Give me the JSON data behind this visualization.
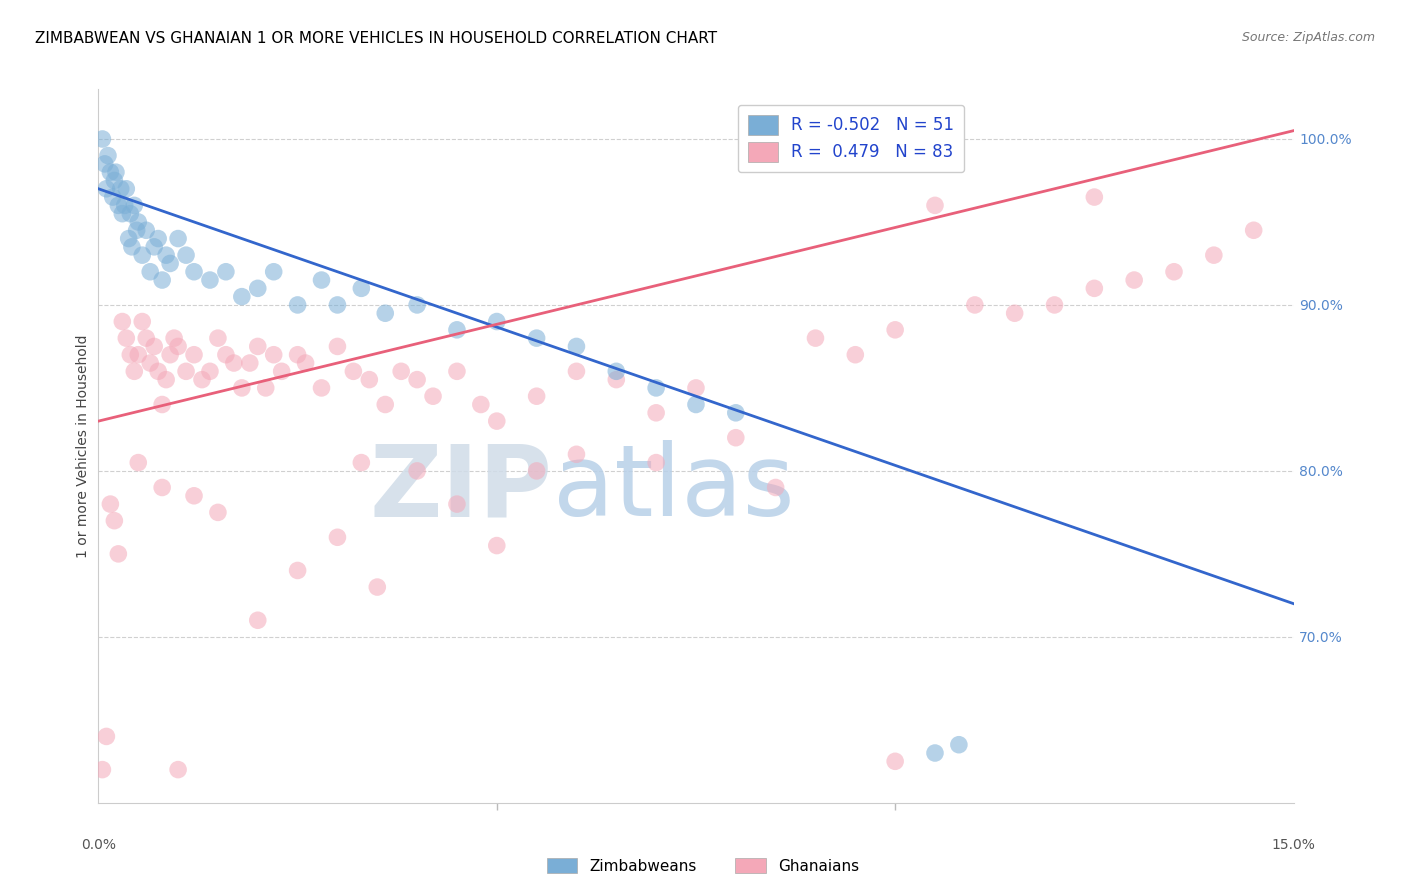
{
  "title": "ZIMBABWEAN VS GHANAIAN 1 OR MORE VEHICLES IN HOUSEHOLD CORRELATION CHART",
  "source": "Source: ZipAtlas.com",
  "ylabel": "1 or more Vehicles in Household",
  "xmin": 0.0,
  "xmax": 15.0,
  "ymin": 60.0,
  "ymax": 103.0,
  "zim_color": "#7aaed6",
  "gha_color": "#f4a8b8",
  "zim_line_color": "#3366cc",
  "gha_line_color": "#e8607a",
  "zim_r": -0.502,
  "zim_n": 51,
  "gha_r": 0.479,
  "gha_n": 83,
  "watermark_zip": "ZIP",
  "watermark_atlas": "atlas",
  "watermark_color": "#ccdff0",
  "legend_label_zim": "Zimbabweans",
  "legend_label_gha": "Ghanaians",
  "ytick_vals": [
    70.0,
    80.0,
    90.0,
    100.0
  ],
  "ytick_labels": [
    "70.0%",
    "80.0%",
    "90.0%",
    "100.0%"
  ],
  "right_y_color": "#5588cc",
  "grid_color": "#d0d0d0",
  "bg_color": "#ffffff",
  "title_fontsize": 11,
  "source_fontsize": 9,
  "marker_size": 160,
  "marker_alpha": 0.55,
  "line_width": 2.0,
  "zim_line_y0": 97.0,
  "zim_line_y1": 72.0,
  "gha_line_y0": 83.0,
  "gha_line_y1": 100.5,
  "zim_x": [
    0.05,
    0.08,
    0.1,
    0.12,
    0.15,
    0.18,
    0.2,
    0.22,
    0.25,
    0.28,
    0.3,
    0.33,
    0.35,
    0.38,
    0.4,
    0.42,
    0.45,
    0.48,
    0.5,
    0.55,
    0.6,
    0.65,
    0.7,
    0.75,
    0.8,
    0.85,
    0.9,
    1.0,
    1.1,
    1.2,
    1.4,
    1.6,
    1.8,
    2.0,
    2.2,
    2.5,
    2.8,
    3.0,
    3.3,
    3.6,
    4.0,
    4.5,
    5.0,
    5.5,
    6.0,
    6.5,
    7.0,
    7.5,
    8.0,
    10.5,
    10.8
  ],
  "zim_y": [
    100.0,
    98.5,
    97.0,
    99.0,
    98.0,
    96.5,
    97.5,
    98.0,
    96.0,
    97.0,
    95.5,
    96.0,
    97.0,
    94.0,
    95.5,
    93.5,
    96.0,
    94.5,
    95.0,
    93.0,
    94.5,
    92.0,
    93.5,
    94.0,
    91.5,
    93.0,
    92.5,
    94.0,
    93.0,
    92.0,
    91.5,
    92.0,
    90.5,
    91.0,
    92.0,
    90.0,
    91.5,
    90.0,
    91.0,
    89.5,
    90.0,
    88.5,
    89.0,
    88.0,
    87.5,
    86.0,
    85.0,
    84.0,
    83.5,
    63.0,
    63.5
  ],
  "gha_x": [
    0.05,
    0.1,
    0.15,
    0.2,
    0.25,
    0.3,
    0.35,
    0.4,
    0.45,
    0.5,
    0.55,
    0.6,
    0.65,
    0.7,
    0.75,
    0.8,
    0.85,
    0.9,
    0.95,
    1.0,
    1.1,
    1.2,
    1.3,
    1.4,
    1.5,
    1.6,
    1.7,
    1.8,
    1.9,
    2.0,
    2.1,
    2.2,
    2.3,
    2.5,
    2.6,
    2.8,
    3.0,
    3.2,
    3.4,
    3.6,
    3.8,
    4.0,
    4.2,
    4.5,
    4.8,
    5.0,
    5.5,
    6.0,
    6.5,
    7.0,
    7.5,
    8.0,
    9.0,
    9.5,
    10.0,
    11.0,
    11.5,
    12.0,
    12.5,
    13.0,
    13.5,
    14.0,
    14.5,
    0.5,
    0.8,
    1.0,
    1.2,
    1.5,
    2.0,
    2.5,
    3.0,
    3.5,
    4.0,
    4.5,
    5.0,
    5.5,
    6.0,
    7.0,
    8.5,
    10.0,
    12.5,
    10.5,
    3.3
  ],
  "gha_y": [
    62.0,
    64.0,
    78.0,
    77.0,
    75.0,
    89.0,
    88.0,
    87.0,
    86.0,
    87.0,
    89.0,
    88.0,
    86.5,
    87.5,
    86.0,
    84.0,
    85.5,
    87.0,
    88.0,
    87.5,
    86.0,
    87.0,
    85.5,
    86.0,
    88.0,
    87.0,
    86.5,
    85.0,
    86.5,
    87.5,
    85.0,
    87.0,
    86.0,
    87.0,
    86.5,
    85.0,
    87.5,
    86.0,
    85.5,
    84.0,
    86.0,
    85.5,
    84.5,
    86.0,
    84.0,
    83.0,
    84.5,
    86.0,
    85.5,
    83.5,
    85.0,
    82.0,
    88.0,
    87.0,
    88.5,
    90.0,
    89.5,
    90.0,
    91.0,
    91.5,
    92.0,
    93.0,
    94.5,
    80.5,
    79.0,
    62.0,
    78.5,
    77.5,
    71.0,
    74.0,
    76.0,
    73.0,
    80.0,
    78.0,
    75.5,
    80.0,
    81.0,
    80.5,
    79.0,
    62.5,
    96.5,
    96.0,
    80.5
  ]
}
